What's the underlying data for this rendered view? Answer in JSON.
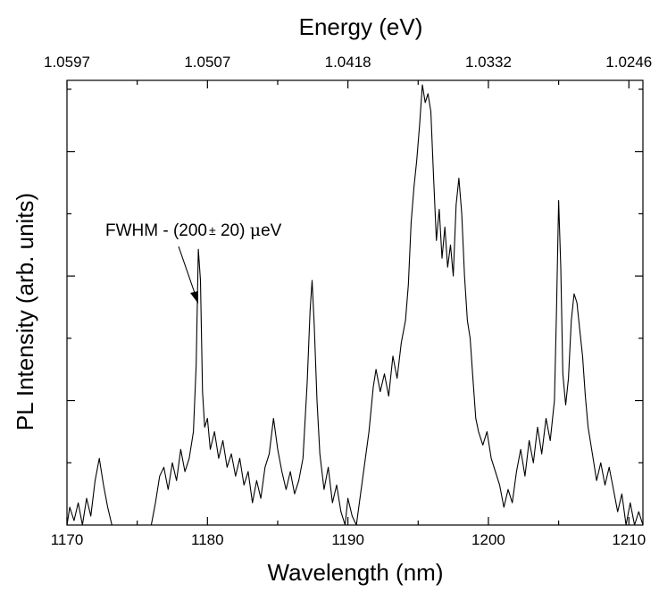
{
  "chart_data": {
    "type": "line",
    "title": "",
    "xlabel": "Wavelength (nm)",
    "ylabel": "PL Intensity (arb. units)",
    "top_xlabel": "Energy (eV)",
    "xlim": [
      1170,
      1211
    ],
    "ylim": [
      0,
      1.0
    ],
    "x_ticks": [
      "1170",
      "1180",
      "1190",
      "1200",
      "1210"
    ],
    "top_ticks": [
      {
        "wavelength": 1170,
        "label": "1.0597"
      },
      {
        "wavelength": 1180,
        "label": "1.0507"
      },
      {
        "wavelength": 1190,
        "label": "1.0418"
      },
      {
        "wavelength": 1200,
        "label": "1.0332"
      },
      {
        "wavelength": 1210,
        "label": "1.0246"
      }
    ],
    "y_ticks": [
      0.28,
      0.56,
      0.84
    ],
    "y_tick_labels_shown": false,
    "grid": false,
    "annotation": {
      "text_prefix": "FWHM - (200",
      "text_pm": "±",
      "text_suffix": " 20) ",
      "text_mu": "μ",
      "text_unit": "eV",
      "points_to_wavelength": 1179.4
    },
    "series": [
      {
        "points": [
          [
            1170.0,
            0.0
          ],
          [
            1170.2,
            0.04
          ],
          [
            1170.5,
            0.01
          ],
          [
            1170.8,
            0.05
          ],
          [
            1171.1,
            0.0
          ],
          [
            1171.4,
            0.06
          ],
          [
            1171.7,
            0.02
          ],
          [
            1172.0,
            0.1
          ],
          [
            1172.3,
            0.15
          ],
          [
            1172.6,
            0.09
          ],
          [
            1172.9,
            0.04
          ],
          [
            1173.2,
            0.0
          ],
          [
            1173.5,
            0.0
          ],
          [
            1175.0,
            0.0
          ],
          [
            1176.0,
            0.0
          ],
          [
            1176.3,
            0.05
          ],
          [
            1176.6,
            0.11
          ],
          [
            1176.9,
            0.13
          ],
          [
            1177.2,
            0.08
          ],
          [
            1177.5,
            0.14
          ],
          [
            1177.8,
            0.1
          ],
          [
            1178.1,
            0.17
          ],
          [
            1178.4,
            0.12
          ],
          [
            1178.7,
            0.15
          ],
          [
            1179.0,
            0.21
          ],
          [
            1179.2,
            0.36
          ],
          [
            1179.35,
            0.62
          ],
          [
            1179.5,
            0.55
          ],
          [
            1179.65,
            0.3
          ],
          [
            1179.8,
            0.22
          ],
          [
            1180.0,
            0.24
          ],
          [
            1180.2,
            0.17
          ],
          [
            1180.5,
            0.21
          ],
          [
            1180.8,
            0.15
          ],
          [
            1181.1,
            0.19
          ],
          [
            1181.4,
            0.13
          ],
          [
            1181.7,
            0.16
          ],
          [
            1182.0,
            0.11
          ],
          [
            1182.3,
            0.15
          ],
          [
            1182.6,
            0.09
          ],
          [
            1182.9,
            0.12
          ],
          [
            1183.2,
            0.05
          ],
          [
            1183.5,
            0.1
          ],
          [
            1183.8,
            0.06
          ],
          [
            1184.1,
            0.13
          ],
          [
            1184.4,
            0.16
          ],
          [
            1184.7,
            0.24
          ],
          [
            1185.0,
            0.17
          ],
          [
            1185.3,
            0.12
          ],
          [
            1185.6,
            0.08
          ],
          [
            1185.9,
            0.12
          ],
          [
            1186.2,
            0.07
          ],
          [
            1186.5,
            0.1
          ],
          [
            1186.8,
            0.15
          ],
          [
            1187.1,
            0.32
          ],
          [
            1187.3,
            0.48
          ],
          [
            1187.45,
            0.55
          ],
          [
            1187.6,
            0.45
          ],
          [
            1187.8,
            0.28
          ],
          [
            1188.0,
            0.16
          ],
          [
            1188.3,
            0.08
          ],
          [
            1188.6,
            0.13
          ],
          [
            1188.9,
            0.05
          ],
          [
            1189.2,
            0.09
          ],
          [
            1189.5,
            0.03
          ],
          [
            1189.8,
            0.0
          ],
          [
            1190.0,
            0.06
          ],
          [
            1190.3,
            0.02
          ],
          [
            1190.6,
            0.0
          ],
          [
            1190.9,
            0.07
          ],
          [
            1191.2,
            0.14
          ],
          [
            1191.5,
            0.21
          ],
          [
            1191.8,
            0.31
          ],
          [
            1192.0,
            0.35
          ],
          [
            1192.3,
            0.3
          ],
          [
            1192.6,
            0.34
          ],
          [
            1192.9,
            0.29
          ],
          [
            1193.2,
            0.38
          ],
          [
            1193.5,
            0.33
          ],
          [
            1193.8,
            0.41
          ],
          [
            1194.1,
            0.46
          ],
          [
            1194.3,
            0.54
          ],
          [
            1194.5,
            0.68
          ],
          [
            1194.7,
            0.76
          ],
          [
            1194.9,
            0.82
          ],
          [
            1195.1,
            0.9
          ],
          [
            1195.3,
            0.99
          ],
          [
            1195.5,
            0.95
          ],
          [
            1195.7,
            0.97
          ],
          [
            1195.9,
            0.93
          ],
          [
            1196.1,
            0.78
          ],
          [
            1196.3,
            0.64
          ],
          [
            1196.5,
            0.71
          ],
          [
            1196.7,
            0.6
          ],
          [
            1196.9,
            0.67
          ],
          [
            1197.1,
            0.58
          ],
          [
            1197.3,
            0.63
          ],
          [
            1197.5,
            0.56
          ],
          [
            1197.7,
            0.72
          ],
          [
            1197.9,
            0.78
          ],
          [
            1198.1,
            0.7
          ],
          [
            1198.3,
            0.56
          ],
          [
            1198.5,
            0.46
          ],
          [
            1198.7,
            0.42
          ],
          [
            1198.9,
            0.33
          ],
          [
            1199.1,
            0.24
          ],
          [
            1199.3,
            0.21
          ],
          [
            1199.6,
            0.18
          ],
          [
            1199.9,
            0.21
          ],
          [
            1200.2,
            0.15
          ],
          [
            1200.5,
            0.12
          ],
          [
            1200.8,
            0.09
          ],
          [
            1201.1,
            0.04
          ],
          [
            1201.4,
            0.08
          ],
          [
            1201.7,
            0.05
          ],
          [
            1202.0,
            0.12
          ],
          [
            1202.3,
            0.17
          ],
          [
            1202.6,
            0.11
          ],
          [
            1202.9,
            0.19
          ],
          [
            1203.2,
            0.14
          ],
          [
            1203.5,
            0.22
          ],
          [
            1203.8,
            0.16
          ],
          [
            1204.1,
            0.24
          ],
          [
            1204.4,
            0.19
          ],
          [
            1204.7,
            0.28
          ],
          [
            1204.85,
            0.48
          ],
          [
            1205.0,
            0.73
          ],
          [
            1205.15,
            0.58
          ],
          [
            1205.3,
            0.34
          ],
          [
            1205.5,
            0.27
          ],
          [
            1205.7,
            0.33
          ],
          [
            1205.9,
            0.46
          ],
          [
            1206.1,
            0.52
          ],
          [
            1206.3,
            0.5
          ],
          [
            1206.5,
            0.44
          ],
          [
            1206.7,
            0.38
          ],
          [
            1206.9,
            0.29
          ],
          [
            1207.1,
            0.22
          ],
          [
            1207.4,
            0.16
          ],
          [
            1207.7,
            0.1
          ],
          [
            1208.0,
            0.14
          ],
          [
            1208.3,
            0.09
          ],
          [
            1208.6,
            0.13
          ],
          [
            1208.9,
            0.08
          ],
          [
            1209.2,
            0.03
          ],
          [
            1209.5,
            0.07
          ],
          [
            1209.8,
            0.0
          ],
          [
            1210.1,
            0.05
          ],
          [
            1210.4,
            0.0
          ],
          [
            1210.7,
            0.03
          ],
          [
            1211.0,
            0.0
          ]
        ]
      }
    ]
  }
}
